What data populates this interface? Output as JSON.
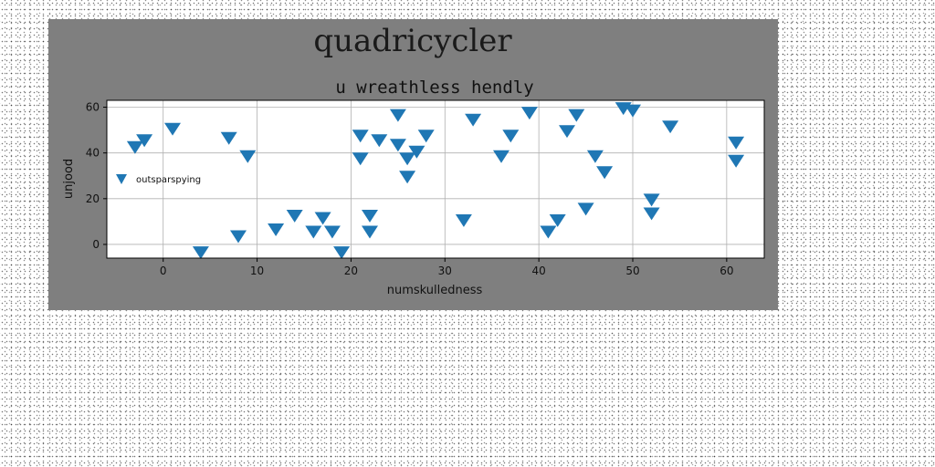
{
  "chart_data": {
    "type": "scatter",
    "suptitle": "quadricycler",
    "title": "u wreathless hendly",
    "xlabel": "numskulledness",
    "ylabel": "unjood",
    "xlim": [
      -6,
      64
    ],
    "ylim": [
      -6,
      63
    ],
    "xticks": [
      0,
      10,
      20,
      30,
      40,
      50,
      60
    ],
    "yticks": [
      0,
      20,
      40,
      60
    ],
    "grid": true,
    "legend": "center-left",
    "colors": {
      "figure_background": "#7f7f7f",
      "axes_background": "#ffffff",
      "marker": "#1f77b4"
    },
    "series": [
      {
        "name": "outsparspying",
        "marker": "triangle-down",
        "points": [
          [
            -3,
            43
          ],
          [
            -2,
            46
          ],
          [
            1,
            51
          ],
          [
            4,
            -3
          ],
          [
            7,
            47
          ],
          [
            8,
            4
          ],
          [
            9,
            39
          ],
          [
            12,
            7
          ],
          [
            14,
            13
          ],
          [
            16,
            6
          ],
          [
            17,
            12
          ],
          [
            18,
            6
          ],
          [
            19,
            -3
          ],
          [
            21,
            48
          ],
          [
            21,
            38
          ],
          [
            22,
            13
          ],
          [
            22,
            6
          ],
          [
            23,
            46
          ],
          [
            25,
            57
          ],
          [
            25,
            44
          ],
          [
            26,
            38
          ],
          [
            26,
            30
          ],
          [
            27,
            41
          ],
          [
            28,
            48
          ],
          [
            32,
            11
          ],
          [
            33,
            55
          ],
          [
            36,
            39
          ],
          [
            37,
            48
          ],
          [
            39,
            58
          ],
          [
            41,
            6
          ],
          [
            42,
            11
          ],
          [
            43,
            50
          ],
          [
            44,
            57
          ],
          [
            45,
            16
          ],
          [
            46,
            39
          ],
          [
            47,
            32
          ],
          [
            49,
            60
          ],
          [
            50,
            59
          ],
          [
            52,
            20
          ],
          [
            52,
            14
          ],
          [
            54,
            52
          ],
          [
            61,
            45
          ],
          [
            61,
            37
          ]
        ]
      }
    ]
  }
}
